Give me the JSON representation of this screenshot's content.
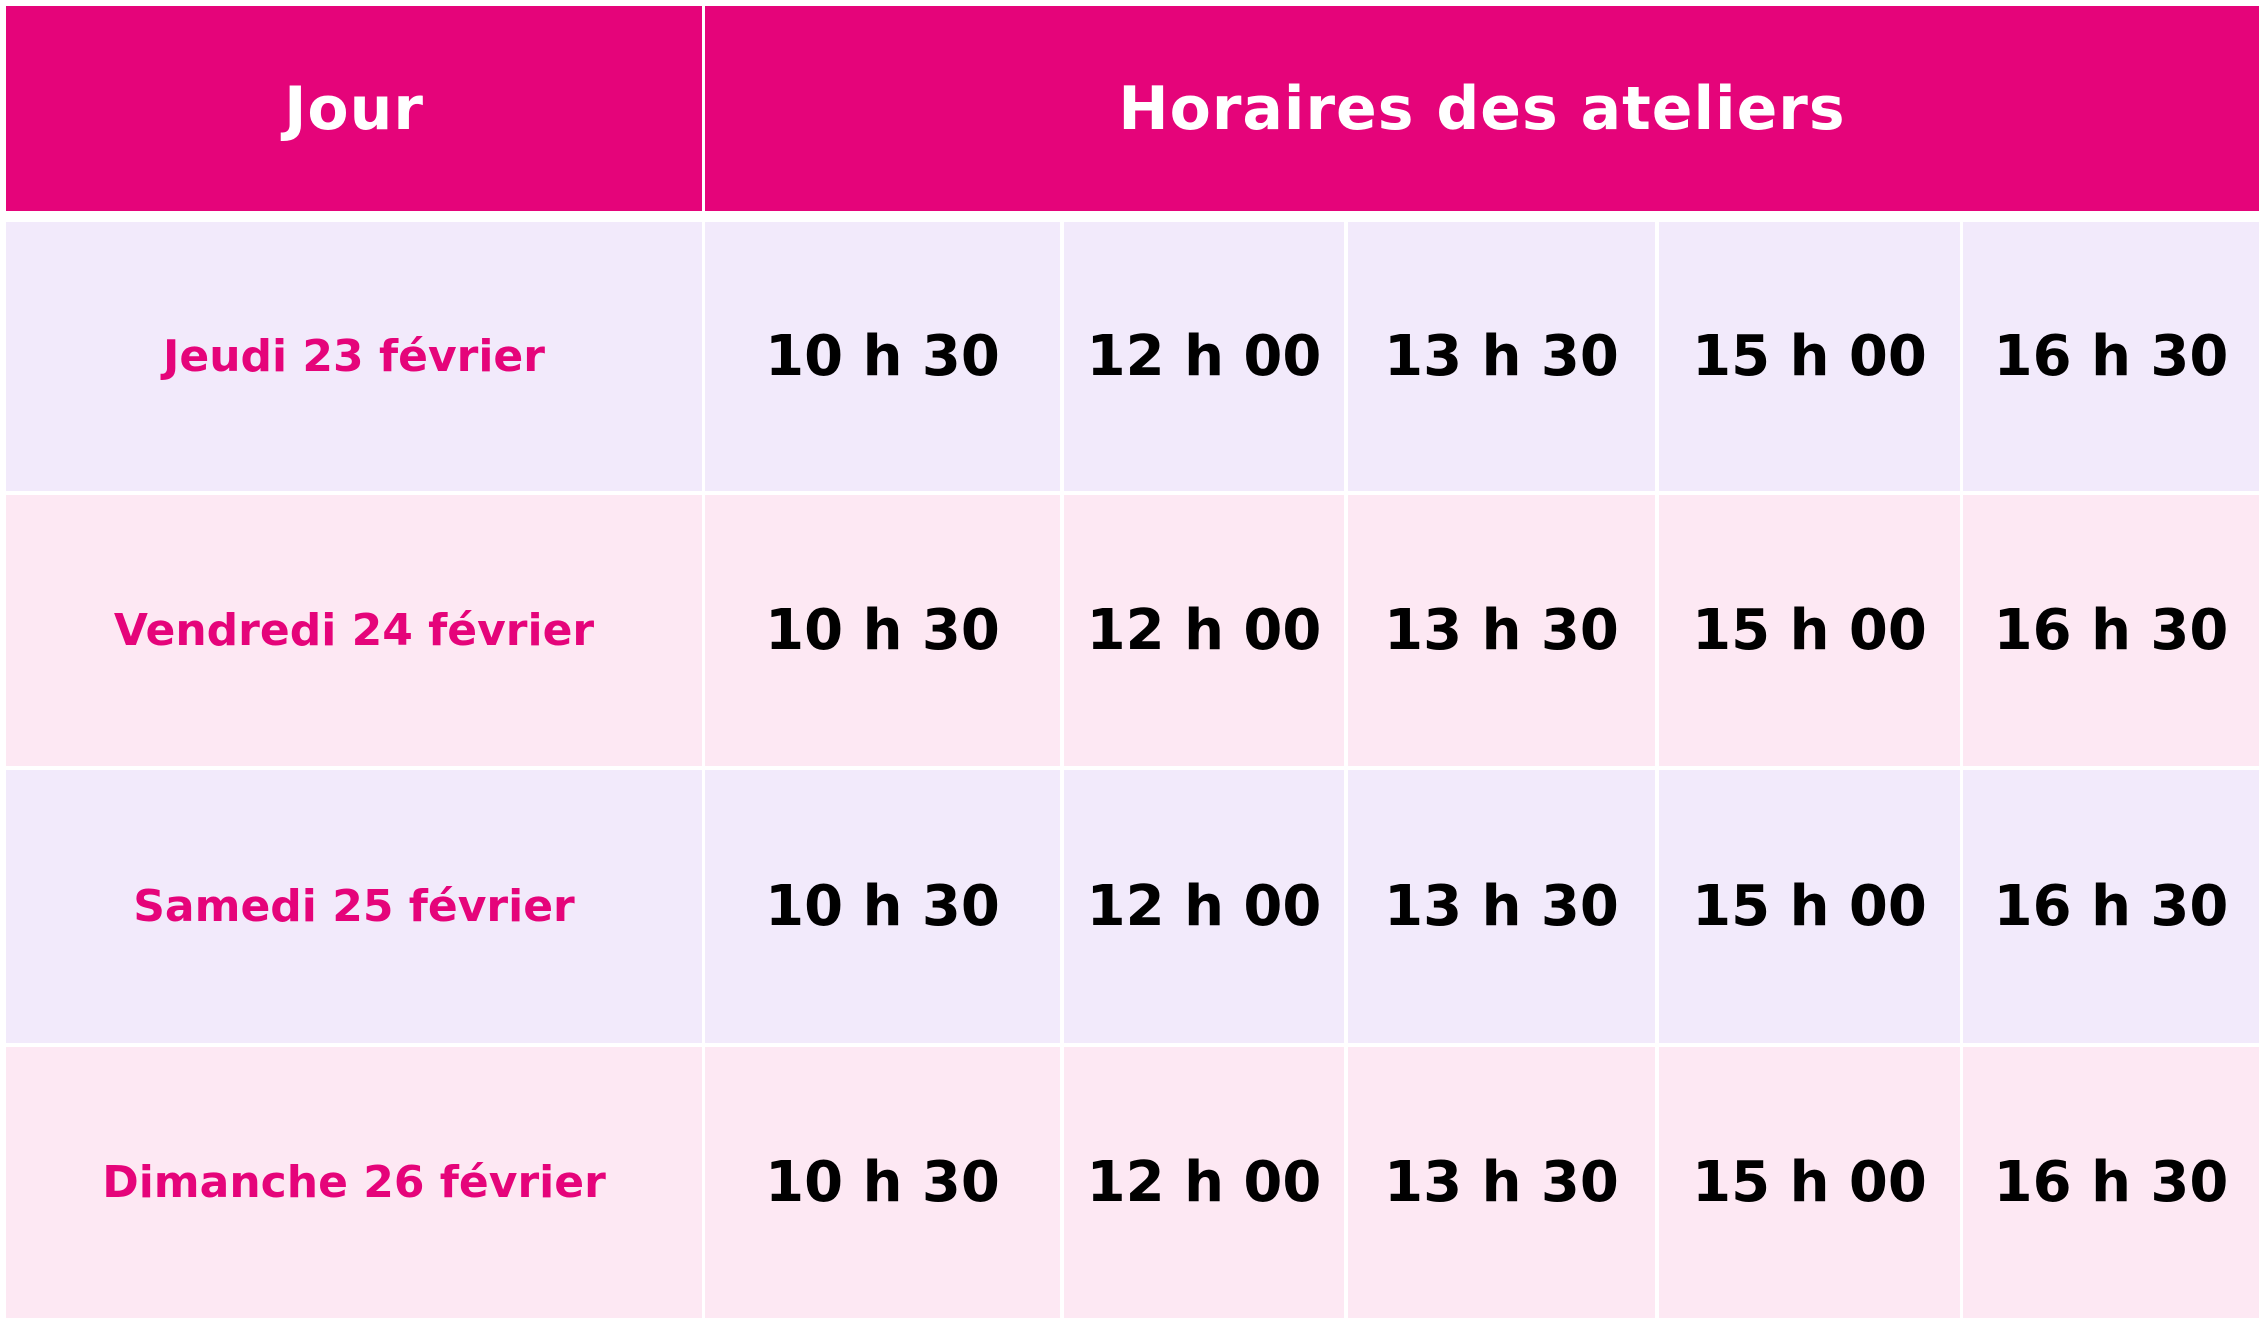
{
  "header": {
    "day": "Jour",
    "times": "Horaires des ateliers"
  },
  "colors": {
    "accent": "#e5047a",
    "row_odd": "#f2eafb",
    "row_even": "#fde8f3"
  },
  "rows": [
    {
      "day": "Jeudi 23 février",
      "times": [
        "10 h 30",
        "12 h 00",
        "13 h 30",
        "15 h 00",
        "16 h 30"
      ]
    },
    {
      "day": "Vendredi 24 février",
      "times": [
        "10 h 30",
        "12 h 00",
        "13 h 30",
        "15 h 00",
        "16 h 30"
      ]
    },
    {
      "day": "Samedi 25 février",
      "times": [
        "10 h 30",
        "12 h 00",
        "13 h 30",
        "15 h 00",
        "16 h 30"
      ]
    },
    {
      "day": "Dimanche 26 février",
      "times": [
        "10 h 30",
        "12 h 00",
        "13 h 30",
        "15 h 00",
        "16 h 30"
      ]
    }
  ]
}
